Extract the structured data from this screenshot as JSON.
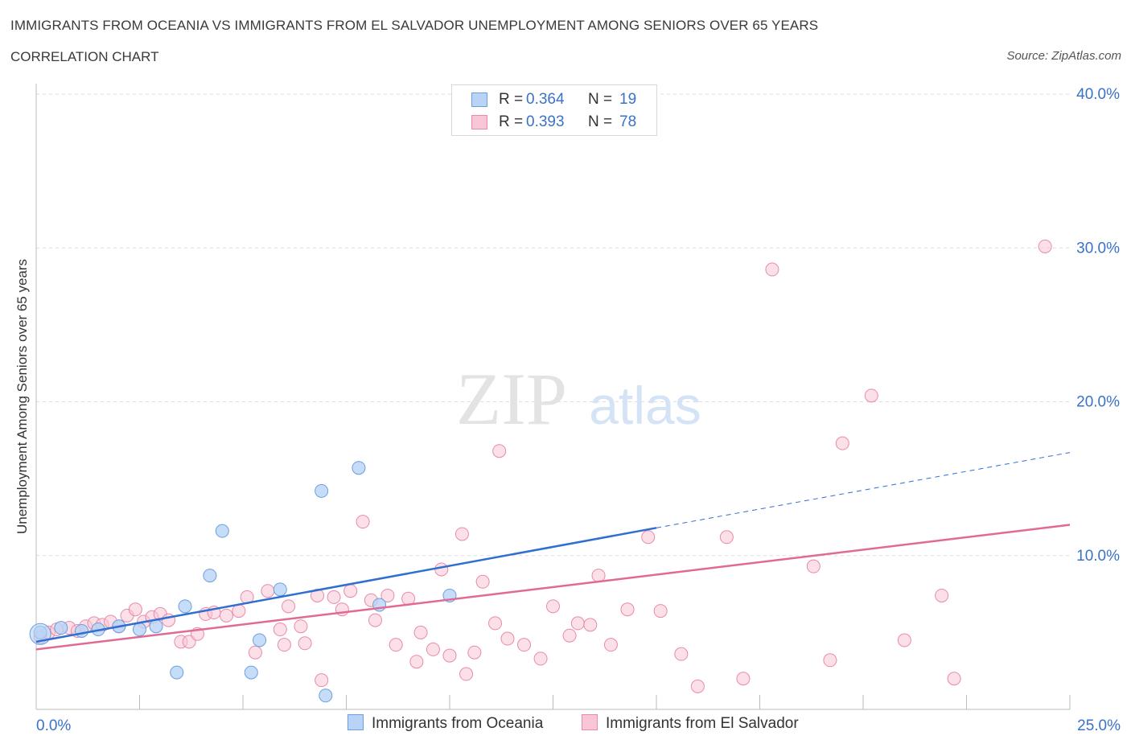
{
  "title": "IMMIGRANTS FROM OCEANIA VS IMMIGRANTS FROM EL SALVADOR UNEMPLOYMENT AMONG SENIORS OVER 65 YEARS",
  "subtitle": "CORRELATION CHART",
  "source": "Source: ZipAtlas.com",
  "watermark": {
    "zip": "ZIP",
    "atlas": "atlas"
  },
  "legend_top": [
    {
      "r_label": "R = ",
      "r_value": "0.364",
      "n_label": "N = ",
      "n_value": "19"
    },
    {
      "r_label": "R = ",
      "r_value": "0.393",
      "n_label": "N = ",
      "n_value": "78"
    }
  ],
  "colors": {
    "oceania_fill": "#b8d3f5",
    "oceania_stroke": "#6a9fe0",
    "oceania_line": "#2f6fd0",
    "elsalvador_fill": "#f8c6d6",
    "elsalvador_stroke": "#e98aa9",
    "elsalvador_line": "#e06a94",
    "tick_label": "#3a72c8",
    "grid": "#dddddd"
  },
  "chart_data": {
    "type": "scatter",
    "title": "IMMIGRANTS FROM OCEANIA VS IMMIGRANTS FROM EL SALVADOR UNEMPLOYMENT AMONG SENIORS OVER 65 YEARS",
    "xlabel": "",
    "ylabel": "Unemployment Among Seniors over 65 years",
    "xlim": [
      0,
      25
    ],
    "ylim": [
      0,
      40
    ],
    "x_tick_labels": [
      "0.0%",
      "25.0%"
    ],
    "y_ticks": [
      10,
      20,
      30,
      40
    ],
    "y_tick_labels": [
      "10.0%",
      "20.0%",
      "30.0%",
      "40.0%"
    ],
    "grid": true,
    "legend_position": "top-center",
    "series": [
      {
        "name": "Immigrants from Oceania",
        "R": 0.364,
        "N": 19,
        "trend": {
          "x0": 0,
          "y0": 4.4,
          "x1": 15,
          "y1": 11.8,
          "dashed_to_x": 25,
          "dashed_to_y": 16.7
        },
        "points": [
          [
            0.1,
            5.0
          ],
          [
            0.6,
            5.3
          ],
          [
            1.1,
            5.1
          ],
          [
            1.5,
            5.2
          ],
          [
            2.0,
            5.4
          ],
          [
            2.5,
            5.2
          ],
          [
            2.9,
            5.4
          ],
          [
            3.4,
            2.4
          ],
          [
            3.6,
            6.7
          ],
          [
            4.2,
            8.7
          ],
          [
            4.5,
            11.6
          ],
          [
            5.2,
            2.4
          ],
          [
            5.4,
            4.5
          ],
          [
            5.9,
            7.8
          ],
          [
            6.9,
            14.2
          ],
          [
            7.0,
            0.9
          ],
          [
            7.8,
            15.7
          ],
          [
            8.3,
            6.8
          ],
          [
            10.0,
            7.4
          ]
        ]
      },
      {
        "name": "Immigrants from El Salvador",
        "R": 0.393,
        "N": 78,
        "trend": {
          "x0": 0,
          "y0": 3.9,
          "x1": 25,
          "y1": 12.0
        },
        "points": [
          [
            0.1,
            4.7
          ],
          [
            0.3,
            5.0
          ],
          [
            0.5,
            5.2
          ],
          [
            0.8,
            5.3
          ],
          [
            1.0,
            5.1
          ],
          [
            1.2,
            5.4
          ],
          [
            1.4,
            5.6
          ],
          [
            1.6,
            5.5
          ],
          [
            1.8,
            5.7
          ],
          [
            2.0,
            5.4
          ],
          [
            2.2,
            6.1
          ],
          [
            2.4,
            6.5
          ],
          [
            2.6,
            5.7
          ],
          [
            2.8,
            6.0
          ],
          [
            3.0,
            6.2
          ],
          [
            3.2,
            5.8
          ],
          [
            3.5,
            4.4
          ],
          [
            3.7,
            4.4
          ],
          [
            3.9,
            4.9
          ],
          [
            4.1,
            6.2
          ],
          [
            4.3,
            6.3
          ],
          [
            4.6,
            6.1
          ],
          [
            4.9,
            6.4
          ],
          [
            5.1,
            7.3
          ],
          [
            5.3,
            3.7
          ],
          [
            5.6,
            7.7
          ],
          [
            5.9,
            5.2
          ],
          [
            6.0,
            4.2
          ],
          [
            6.1,
            6.7
          ],
          [
            6.4,
            5.4
          ],
          [
            6.5,
            4.3
          ],
          [
            6.8,
            7.4
          ],
          [
            6.9,
            1.9
          ],
          [
            7.2,
            7.3
          ],
          [
            7.4,
            6.5
          ],
          [
            7.6,
            7.7
          ],
          [
            7.9,
            12.2
          ],
          [
            8.1,
            7.1
          ],
          [
            8.2,
            5.8
          ],
          [
            8.5,
            7.4
          ],
          [
            8.7,
            4.2
          ],
          [
            9.0,
            7.2
          ],
          [
            9.2,
            3.1
          ],
          [
            9.3,
            5.0
          ],
          [
            9.6,
            3.9
          ],
          [
            9.8,
            9.1
          ],
          [
            10.0,
            3.5
          ],
          [
            10.3,
            11.4
          ],
          [
            10.4,
            2.3
          ],
          [
            10.6,
            3.7
          ],
          [
            10.8,
            8.3
          ],
          [
            11.1,
            5.6
          ],
          [
            11.2,
            16.8
          ],
          [
            11.4,
            4.6
          ],
          [
            11.8,
            4.2
          ],
          [
            12.2,
            3.3
          ],
          [
            12.5,
            6.7
          ],
          [
            12.9,
            4.8
          ],
          [
            13.1,
            5.6
          ],
          [
            13.4,
            5.5
          ],
          [
            13.6,
            8.7
          ],
          [
            13.9,
            4.2
          ],
          [
            14.3,
            6.5
          ],
          [
            14.8,
            11.2
          ],
          [
            15.1,
            6.4
          ],
          [
            15.6,
            3.6
          ],
          [
            16.0,
            1.5
          ],
          [
            16.7,
            11.2
          ],
          [
            17.1,
            2.0
          ],
          [
            17.8,
            28.6
          ],
          [
            18.8,
            9.3
          ],
          [
            19.2,
            3.2
          ],
          [
            19.5,
            17.3
          ],
          [
            20.2,
            20.4
          ],
          [
            21.0,
            4.5
          ],
          [
            21.9,
            7.4
          ],
          [
            22.2,
            2.0
          ],
          [
            24.4,
            30.1
          ]
        ]
      }
    ]
  }
}
